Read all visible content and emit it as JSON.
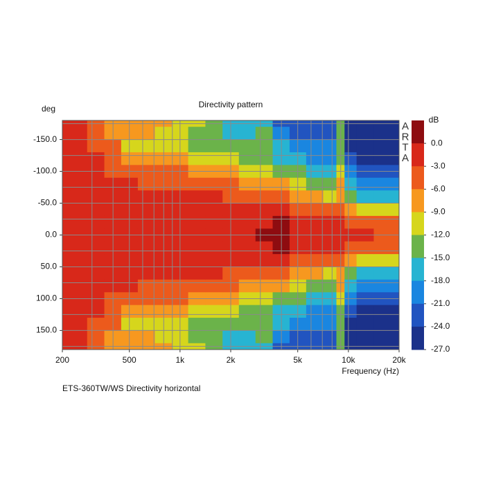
{
  "chart_data": {
    "type": "contour",
    "title": "Directivity pattern",
    "caption": "ETS-360TW/WS  Directivity horizontal",
    "xlabel": "Frequency (Hz)",
    "ylabel": "deg",
    "watermark": [
      "A",
      "R",
      "T",
      "A"
    ],
    "xscale": "log",
    "xlim": [
      200,
      20000
    ],
    "ylim": [
      -180,
      180
    ],
    "xticks": [
      200,
      500,
      {
        "value": 1000,
        "label": "1k"
      },
      {
        "value": 2000,
        "label": "2k"
      },
      {
        "value": 5000,
        "label": "5k"
      },
      {
        "value": 10000,
        "label": "10k"
      },
      {
        "value": 20000,
        "label": "20k"
      }
    ],
    "yticks": [
      {
        "value": -150,
        "label": "-150.0"
      },
      {
        "value": -100,
        "label": "-100.0"
      },
      {
        "value": -50,
        "label": "-50.0"
      },
      {
        "value": 0,
        "label": "0.0"
      },
      {
        "value": 50,
        "label": "50.0"
      },
      {
        "value": 100,
        "label": "100.0"
      },
      {
        "value": 150,
        "label": "150.0"
      }
    ],
    "xgrid": [
      300,
      400,
      500,
      600,
      700,
      800,
      900,
      1000,
      2000,
      3000,
      4000,
      5000,
      6000,
      7000,
      8000,
      9000,
      10000
    ],
    "ygrid": [
      -175,
      -150,
      -125,
      -100,
      -75,
      -50,
      -25,
      0,
      25,
      50,
      75,
      100,
      125,
      150,
      175
    ],
    "grid_color": "#8a8a8a",
    "x": [
      200,
      250,
      315,
      400,
      500,
      630,
      800,
      1000,
      1250,
      1600,
      2000,
      2500,
      3150,
      4000,
      5000,
      6300,
      8000,
      9000,
      10000,
      12500,
      16000,
      20000
    ],
    "y": [
      -180,
      -160,
      -140,
      -120,
      -100,
      -80,
      -60,
      -40,
      -20,
      0,
      20,
      40,
      60,
      80,
      100,
      120,
      140,
      160,
      180
    ],
    "z": [
      [
        -2,
        -2,
        -2,
        -2,
        -2,
        -2,
        -1.5,
        -1.5,
        -1,
        -1,
        -1,
        -1.5,
        -1.5,
        -2,
        -2,
        -2,
        -2,
        -2,
        -2
      ],
      [
        -2.5,
        -2.5,
        -2.5,
        -2.5,
        -2,
        -2,
        -1.5,
        -1.5,
        -1,
        -1,
        -1,
        -1.5,
        -1.5,
        -2,
        -2,
        -2.5,
        -2.5,
        -2.5,
        -2.5
      ],
      [
        -4,
        -4,
        -3.5,
        -3,
        -2.5,
        -2,
        -1.5,
        -1.5,
        -1,
        -1,
        -1,
        -1.5,
        -1.5,
        -2,
        -2.5,
        -3,
        -3.5,
        -4,
        -4
      ],
      [
        -6.5,
        -6.5,
        -5.5,
        -4.5,
        -3.5,
        -2.5,
        -2,
        -1.5,
        -1,
        -1,
        -1,
        -1.5,
        -2,
        -2.5,
        -3.5,
        -4.5,
        -5.5,
        -6.5,
        -6.5
      ],
      [
        -7,
        -8,
        -9.5,
        -7,
        -4.5,
        -3,
        -2,
        -1.5,
        -1,
        -1,
        -1,
        -1.5,
        -2,
        -3,
        -4.5,
        -7,
        -9.5,
        -8,
        -7
      ],
      [
        -8,
        -9,
        -10,
        -7.5,
        -5,
        -4,
        -2.5,
        -1.5,
        -1,
        -1,
        -1,
        -1.5,
        -2.5,
        -4,
        -5,
        -7.5,
        -10,
        -9,
        -8
      ],
      [
        -8.5,
        -10,
        -11,
        -8,
        -5.5,
        -4,
        -2.5,
        -2,
        -1,
        -1,
        -1,
        -2,
        -2.5,
        -4,
        -5.5,
        -8,
        -11,
        -10,
        -8.5
      ],
      [
        -10,
        -11,
        -12,
        -9,
        -6,
        -4.5,
        -3,
        -2,
        -1,
        -1,
        -1,
        -2,
        -3,
        -4.5,
        -6,
        -9,
        -12,
        -11,
        -10
      ],
      [
        -11,
        -12.5,
        -13,
        -9.5,
        -6.5,
        -4.5,
        -3,
        -2,
        -1,
        -1,
        -1,
        -2,
        -3,
        -4.5,
        -6.5,
        -9.5,
        -13,
        -12.5,
        -11
      ],
      [
        -13,
        -15,
        -14,
        -10,
        -7,
        -5,
        -3,
        -2,
        -1,
        -1,
        -1,
        -2,
        -3,
        -5,
        -7,
        -10,
        -14,
        -15,
        -13
      ],
      [
        -16,
        -18,
        -15,
        -11,
        -8,
        -6,
        -3.5,
        -2,
        -1,
        -1,
        -1,
        -2,
        -3.5,
        -6,
        -8,
        -11,
        -15,
        -18,
        -16
      ],
      [
        -17,
        -16,
        -13,
        -13,
        -10,
        -7,
        -4,
        -2,
        -1,
        -0.5,
        -1,
        -2,
        -4,
        -7,
        -10,
        -13,
        -13,
        -16,
        -17
      ],
      [
        -16,
        -15,
        -13,
        -14,
        -12,
        -8,
        -4.5,
        -2,
        -0.5,
        0,
        -0.5,
        -2,
        -4.5,
        -8,
        -12,
        -14,
        -13,
        -15,
        -16
      ],
      [
        -22,
        -21,
        -18,
        -16,
        -13,
        -9,
        -5.5,
        -2.5,
        1,
        0.5,
        1,
        -2.5,
        -5.5,
        -9,
        -13,
        -16,
        -18,
        -21,
        -22
      ],
      [
        -24,
        -23,
        -20,
        -18,
        -15,
        -11,
        -7,
        -3.5,
        -1.5,
        -1,
        -1.5,
        -3.5,
        -7,
        -11,
        -15,
        -18,
        -20,
        -23,
        -24
      ],
      [
        -23,
        -22,
        -19,
        -20,
        -17,
        -13,
        -9,
        -5,
        -2.5,
        -1.5,
        -2.5,
        -5,
        -9,
        -13,
        -17,
        -20,
        -19,
        -22,
        -23
      ],
      [
        -24,
        -23,
        -21,
        -19,
        -18,
        -15,
        -11,
        -6,
        -3,
        -2,
        -3,
        -6,
        -11,
        -15,
        -18,
        -19,
        -21,
        -23,
        -24
      ],
      [
        -14,
        -14,
        -13,
        -13,
        -11,
        -9,
        -7,
        -5,
        -2,
        -1,
        -2,
        -5,
        -7,
        -9,
        -11,
        -13,
        -13,
        -14,
        -14
      ],
      [
        -25,
        -25,
        -25,
        -24,
        -21,
        -18,
        -14,
        -9,
        -4,
        -3,
        -4,
        -9,
        -14,
        -18,
        -21,
        -24,
        -25,
        -25,
        -25
      ],
      [
        -26,
        -26,
        -26,
        -25,
        -23,
        -20,
        -17,
        -10,
        -5,
        -3,
        -5,
        -10,
        -17,
        -20,
        -23,
        -25,
        -26,
        -26,
        -26
      ],
      [
        -26,
        -26,
        -26,
        -25,
        -23,
        -21,
        -17,
        -11,
        -6,
        -4,
        -6,
        -11,
        -17,
        -21,
        -23,
        -25,
        -26,
        -26,
        -26
      ],
      [
        -26,
        -26,
        -26,
        -25,
        -22,
        -20,
        -18,
        -12,
        -6,
        -4,
        -6,
        -12,
        -18,
        -20,
        -22,
        -25,
        -26,
        -26,
        -26
      ]
    ],
    "colorbar": {
      "label": "dB",
      "lim": [
        3,
        -27
      ],
      "ticks": [
        {
          "value": 0,
          "label": "0.0"
        },
        {
          "value": -3,
          "label": "-3.0"
        },
        {
          "value": -6,
          "label": "-6.0"
        },
        {
          "value": -9,
          "label": "-9.0"
        },
        {
          "value": -12,
          "label": "-12.0"
        },
        {
          "value": -15,
          "label": "-15.0"
        },
        {
          "value": -18,
          "label": "-18.0"
        },
        {
          "value": -21,
          "label": "-21.0"
        },
        {
          "value": -24,
          "label": "-24.0"
        },
        {
          "value": -27,
          "label": "-27.0"
        }
      ],
      "colors": [
        "#8e0c10",
        "#d8281a",
        "#ec5a1c",
        "#f7981f",
        "#d6d61c",
        "#6bb34a",
        "#27b4d2",
        "#1a86e0",
        "#2154c0",
        "#1b318a"
      ]
    }
  }
}
